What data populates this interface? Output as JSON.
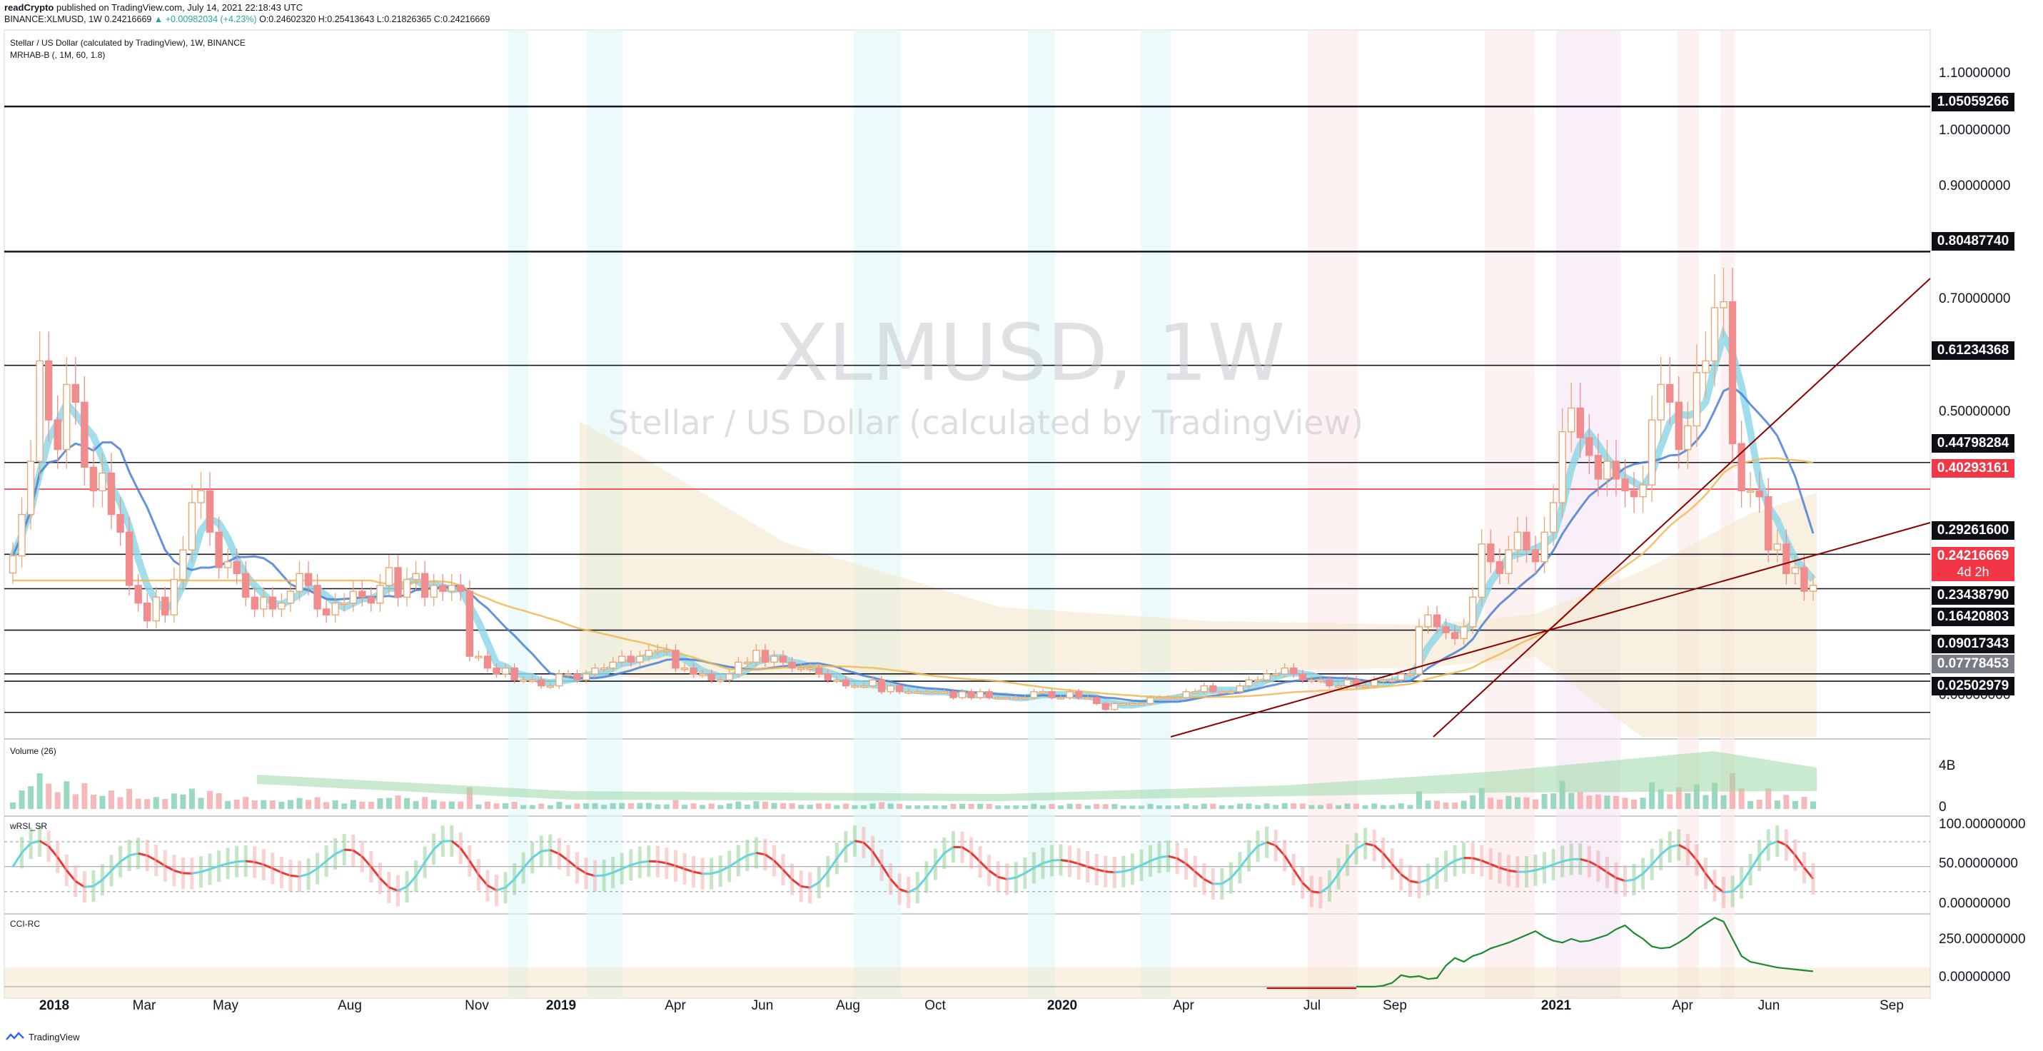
{
  "header": {
    "publisher": "readCrypto",
    "published_text": "published on TradingView.com, July 14, 2021 22:18:43 UTC",
    "symbol": "BINANCE:XLMUSD, 1W",
    "last": "0.24216669",
    "change": "▲ +0.00982034 (+4.23%)",
    "ohlc": "O:0.24602320 H:0.25413643 L:0.21826365 C:0.24216669"
  },
  "main_panel": {
    "title": "Stellar / US Dollar (calculated by TradingView), 1W, BINANCE",
    "indicator": "MRHAB-B (, 1M, 60, 1.8)",
    "watermark_symbol": "XLMUSD, 1W",
    "watermark_name": "Stellar / US Dollar (calculated by TradingView)"
  },
  "panels": {
    "volume_label": "Volume (26)",
    "rsi_label": "wRSI_SR",
    "cci_label": "CCI-RC"
  },
  "price_axis": {
    "ticks": [
      "1.10000000",
      "1.00000000",
      "0.90000000",
      "0.70000000",
      "0.50000000",
      "0.00000000"
    ],
    "tags": [
      "1.05059266",
      "0.80487740",
      "0.61234368",
      "0.44798284",
      "0.40293161",
      "0.29261600",
      "0.23438790",
      "0.16420803",
      "0.09017343",
      "0.07778453",
      "0.02502979"
    ],
    "current_price": "0.24216669",
    "countdown": "4d 2h"
  },
  "volume_axis": {
    "ticks": [
      "4B",
      "0"
    ]
  },
  "rsi_axis": {
    "ticks": [
      "100.00000000",
      "50.00000000",
      "0.00000000"
    ]
  },
  "cci_axis": {
    "ticks": [
      "250.00000000",
      "0.00000000"
    ]
  },
  "time_axis": {
    "labels": [
      "2018",
      "Mar",
      "May",
      "Aug",
      "Nov",
      "2019",
      "Apr",
      "Jun",
      "Aug",
      "Oct",
      "2020",
      "Apr",
      "Jul",
      "Sep",
      "2021",
      "Apr",
      "Jun",
      "Sep"
    ],
    "bold": [
      "2018",
      "2019",
      "2020",
      "2021"
    ]
  },
  "footer": {
    "brand": "TradingView"
  },
  "colors": {
    "bull": "#26a69a",
    "bear": "#ef5350",
    "price_tag": "#f23645",
    "trendline": "#8b0000"
  },
  "chart_data": {
    "type": "candlestick",
    "symbol": "XLMUSD",
    "interval": "1W",
    "price_range": [
      -0.02,
      1.18
    ],
    "horizontal_levels": [
      1.05059266,
      0.8048774,
      0.61234368,
      0.44798284,
      0.40293161,
      0.292616,
      0.2343879,
      0.16420803,
      0.09017343,
      0.07778453,
      0.02502979
    ],
    "closes": [
      0.29,
      0.36,
      0.45,
      0.62,
      0.52,
      0.47,
      0.58,
      0.55,
      0.44,
      0.4,
      0.43,
      0.36,
      0.33,
      0.24,
      0.21,
      0.18,
      0.22,
      0.19,
      0.25,
      0.3,
      0.38,
      0.4,
      0.33,
      0.27,
      0.28,
      0.26,
      0.22,
      0.2,
      0.22,
      0.2,
      0.21,
      0.23,
      0.26,
      0.24,
      0.2,
      0.19,
      0.21,
      0.21,
      0.23,
      0.22,
      0.21,
      0.24,
      0.27,
      0.22,
      0.25,
      0.26,
      0.22,
      0.24,
      0.23,
      0.24,
      0.23,
      0.12,
      0.12,
      0.1,
      0.09,
      0.1,
      0.08,
      0.08,
      0.08,
      0.07,
      0.07,
      0.09,
      0.09,
      0.08,
      0.09,
      0.1,
      0.1,
      0.11,
      0.12,
      0.11,
      0.12,
      0.13,
      0.13,
      0.13,
      0.1,
      0.1,
      0.09,
      0.09,
      0.08,
      0.08,
      0.09,
      0.11,
      0.11,
      0.13,
      0.11,
      0.12,
      0.11,
      0.1,
      0.1,
      0.1,
      0.09,
      0.08,
      0.08,
      0.07,
      0.07,
      0.07,
      0.08,
      0.06,
      0.07,
      0.06,
      0.06,
      0.06,
      0.06,
      0.06,
      0.06,
      0.05,
      0.06,
      0.05,
      0.06,
      0.05,
      0.05,
      0.05,
      0.05,
      0.05,
      0.06,
      0.06,
      0.05,
      0.05,
      0.06,
      0.05,
      0.05,
      0.04,
      0.03,
      0.04,
      0.04,
      0.04,
      0.04,
      0.05,
      0.05,
      0.05,
      0.05,
      0.06,
      0.06,
      0.07,
      0.06,
      0.06,
      0.06,
      0.07,
      0.08,
      0.08,
      0.09,
      0.09,
      0.1,
      0.09,
      0.08,
      0.08,
      0.08,
      0.07,
      0.07,
      0.08,
      0.07,
      0.07,
      0.08,
      0.08,
      0.08,
      0.09,
      0.09,
      0.17,
      0.19,
      0.17,
      0.16,
      0.15,
      0.17,
      0.22,
      0.31,
      0.28,
      0.26,
      0.3,
      0.33,
      0.3,
      0.28,
      0.33,
      0.38,
      0.5,
      0.54,
      0.49,
      0.46,
      0.42,
      0.45,
      0.42,
      0.4,
      0.39,
      0.41,
      0.52,
      0.58,
      0.55,
      0.47,
      0.51,
      0.6,
      0.62,
      0.71,
      0.72,
      0.48,
      0.4,
      0.4,
      0.39,
      0.3,
      0.31,
      0.26,
      0.27,
      0.23,
      0.24
    ],
    "volume_ticks": [
      "4B",
      "0"
    ],
    "rsi_range": [
      0,
      100
    ],
    "cci_range": [
      -60,
      380
    ]
  }
}
